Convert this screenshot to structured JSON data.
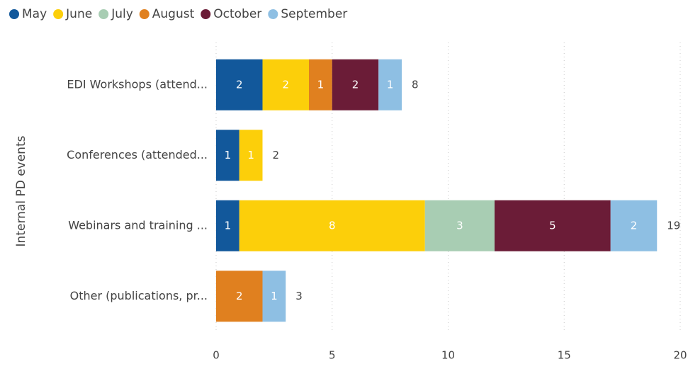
{
  "chart_data": {
    "type": "stacked-bar-horizontal",
    "y_axis_label": "Internal PD events",
    "categories": [
      "EDI Workshops (attend...",
      "Conferences (attended...",
      "Webinars and training ...",
      "Other (publications, pr..."
    ],
    "series": [
      {
        "name": "May",
        "color": "#12589b",
        "values": [
          2,
          1,
          1,
          null
        ]
      },
      {
        "name": "June",
        "color": "#fccf0a",
        "values": [
          2,
          1,
          8,
          null
        ]
      },
      {
        "name": "July",
        "color": "#a8cdb3",
        "values": [
          null,
          null,
          3,
          null
        ]
      },
      {
        "name": "August",
        "color": "#e0801f",
        "values": [
          1,
          null,
          null,
          2
        ]
      },
      {
        "name": "October",
        "color": "#6b1c37",
        "values": [
          2,
          null,
          5,
          null
        ]
      },
      {
        "name": "September",
        "color": "#8ebfe3",
        "values": [
          1,
          null,
          2,
          1
        ]
      }
    ],
    "totals": [
      8,
      2,
      19,
      3
    ],
    "xlim": [
      0,
      20
    ],
    "xticks": [
      0,
      5,
      10,
      15,
      20
    ],
    "grid": true,
    "legend": "top-left"
  }
}
